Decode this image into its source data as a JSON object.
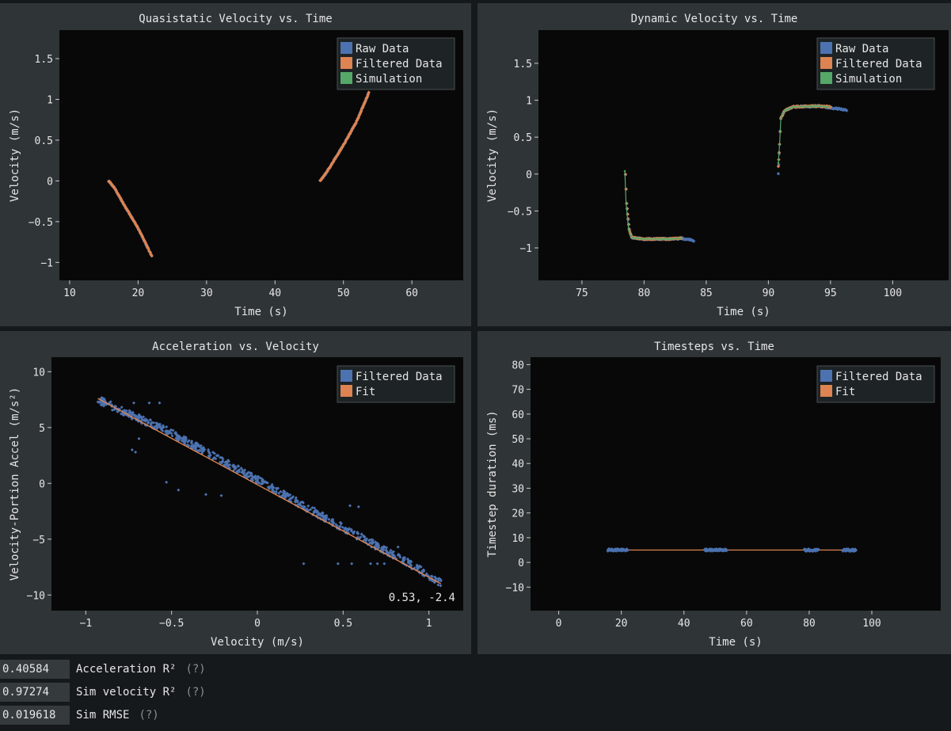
{
  "chart_data": [
    {
      "id": "quasistatic",
      "type": "scatter",
      "title": "Quasistatic Velocity vs. Time",
      "xlabel": "Time (s)",
      "ylabel": "Velocity (m/s)",
      "xlim": [
        8.5,
        67.5
      ],
      "ylim": [
        -1.22,
        1.85
      ],
      "xticks": [
        10,
        20,
        30,
        40,
        50,
        60
      ],
      "yticks": [
        -1,
        -0.5,
        0,
        0.5,
        1,
        1.5
      ],
      "legend": [
        "Raw Data",
        "Filtered Data",
        "Simulation"
      ],
      "legend_position": "top-right",
      "series": [
        {
          "name": "Raw Data",
          "color": "#4c72b0",
          "segments": [
            [
              [
                15.7,
                0.0
              ],
              [
                16.5,
                -0.08
              ],
              [
                18.0,
                -0.3
              ],
              [
                20.0,
                -0.58
              ],
              [
                22.0,
                -0.92
              ]
            ],
            [
              [
                46.6,
                0.0
              ],
              [
                47.5,
                0.1
              ],
              [
                50.0,
                0.44
              ],
              [
                52.0,
                0.74
              ],
              [
                53.7,
                1.08
              ]
            ]
          ]
        },
        {
          "name": "Filtered Data",
          "color": "#dd8452",
          "segments": [
            [
              [
                15.7,
                0.0
              ],
              [
                16.5,
                -0.08
              ],
              [
                18.0,
                -0.3
              ],
              [
                20.0,
                -0.58
              ],
              [
                22.0,
                -0.92
              ]
            ],
            [
              [
                46.6,
                0.0
              ],
              [
                47.5,
                0.1
              ],
              [
                50.0,
                0.44
              ],
              [
                52.0,
                0.74
              ],
              [
                53.7,
                1.08
              ]
            ]
          ]
        },
        {
          "name": "Simulation",
          "color": "#55a868",
          "segments": []
        }
      ]
    },
    {
      "id": "dynamic",
      "type": "scatter",
      "title": "Dynamic Velocity vs. Time",
      "xlabel": "Time (s)",
      "ylabel": "Velocity (m/s)",
      "xlim": [
        71.5,
        104.5
      ],
      "ylim": [
        -1.44,
        1.95
      ],
      "xticks": [
        75,
        80,
        85,
        90,
        95,
        100
      ],
      "yticks": [
        -1,
        -0.5,
        0,
        0.5,
        1,
        1.5
      ],
      "legend": [
        "Raw Data",
        "Filtered Data",
        "Simulation"
      ],
      "legend_position": "top-right",
      "series": [
        {
          "name": "Raw Data",
          "color": "#4c72b0",
          "segments": [
            [
              [
                78.5,
                0.0
              ],
              [
                78.6,
                -0.4
              ],
              [
                78.8,
                -0.75
              ],
              [
                79.0,
                -0.86
              ],
              [
                80.0,
                -0.88
              ],
              [
                82.0,
                -0.88
              ],
              [
                83.0,
                -0.87
              ],
              [
                84.0,
                -0.9
              ]
            ],
            [
              [
                90.8,
                0.0
              ],
              [
                90.9,
                0.4
              ],
              [
                91.0,
                0.75
              ],
              [
                91.3,
                0.86
              ],
              [
                92.0,
                0.91
              ],
              [
                94.0,
                0.92
              ],
              [
                96.3,
                0.87
              ]
            ]
          ]
        },
        {
          "name": "Filtered Data",
          "color": "#dd8452",
          "segments": [
            [
              [
                78.5,
                0.0
              ],
              [
                78.6,
                -0.4
              ],
              [
                78.8,
                -0.75
              ],
              [
                79.0,
                -0.86
              ],
              [
                80.0,
                -0.88
              ],
              [
                82.0,
                -0.88
              ],
              [
                83.0,
                -0.87
              ]
            ],
            [
              [
                90.8,
                0.1
              ],
              [
                90.9,
                0.4
              ],
              [
                91.0,
                0.75
              ],
              [
                91.3,
                0.86
              ],
              [
                92.0,
                0.91
              ],
              [
                94.0,
                0.92
              ],
              [
                95.0,
                0.91
              ]
            ]
          ]
        },
        {
          "name": "Simulation",
          "color": "#55a868",
          "segments": [
            [
              [
                78.45,
                0.04
              ],
              [
                78.55,
                -0.4
              ],
              [
                78.75,
                -0.75
              ],
              [
                79.0,
                -0.86
              ],
              [
                80.0,
                -0.88
              ],
              [
                82.0,
                -0.88
              ],
              [
                83.0,
                -0.87
              ]
            ],
            [
              [
                90.8,
                0.15
              ],
              [
                90.9,
                0.4
              ],
              [
                91.0,
                0.75
              ],
              [
                91.3,
                0.86
              ],
              [
                92.0,
                0.91
              ],
              [
                94.0,
                0.92
              ],
              [
                95.0,
                0.91
              ]
            ]
          ]
        }
      ]
    },
    {
      "id": "accel",
      "type": "scatter",
      "title": "Acceleration vs. Velocity",
      "xlabel": "Velocity (m/s)",
      "ylabel": "Velocity-Portion Accel (m/s²)",
      "xlim": [
        -1.2,
        1.2
      ],
      "ylim": [
        -11.4,
        11.3
      ],
      "xticks": [
        -1,
        -0.5,
        0,
        0.5,
        1
      ],
      "yticks": [
        -10,
        -5,
        0,
        5,
        10
      ],
      "legend": [
        "Filtered Data",
        "Fit"
      ],
      "legend_position": "top-right",
      "cursor_readout": "0.53, -2.4",
      "series": [
        {
          "name": "Filtered Data",
          "color": "#4c72b0",
          "line": [
            [
              -0.93,
              7.5
            ],
            [
              -0.5,
              4.5
            ],
            [
              0.0,
              0.3
            ],
            [
              0.5,
              -4.0
            ],
            [
              0.9,
              -7.3
            ],
            [
              1.07,
              -8.9
            ]
          ],
          "outliers": [
            [
              -0.72,
              7.2
            ],
            [
              -0.63,
              7.2
            ],
            [
              -0.57,
              7.2
            ],
            [
              -0.69,
              4.0
            ],
            [
              -0.73,
              3.0
            ],
            [
              -0.71,
              2.8
            ],
            [
              -0.53,
              0.1
            ],
            [
              -0.46,
              -0.6
            ],
            [
              -0.3,
              -1.0
            ],
            [
              -0.21,
              -1.1
            ],
            [
              0.27,
              -7.2
            ],
            [
              0.47,
              -7.2
            ],
            [
              0.55,
              -7.2
            ],
            [
              0.66,
              -7.2
            ],
            [
              0.7,
              -7.2
            ],
            [
              0.74,
              -7.2
            ],
            [
              0.59,
              -2.1
            ],
            [
              0.54,
              -2.0
            ],
            [
              0.82,
              -5.7
            ]
          ]
        },
        {
          "name": "Fit",
          "color": "#dd8452",
          "line": [
            [
              -0.93,
              7.6
            ],
            [
              1.07,
              -9.0
            ]
          ]
        }
      ]
    },
    {
      "id": "timesteps",
      "type": "scatter",
      "title": "Timesteps vs. Time",
      "xlabel": "Time (s)",
      "ylabel": "Timestep duration (ms)",
      "xlim": [
        -9,
        122
      ],
      "ylim": [
        -19.5,
        83
      ],
      "xticks": [
        0,
        20,
        40,
        60,
        80,
        100
      ],
      "yticks": [
        -10,
        0,
        10,
        20,
        30,
        40,
        50,
        60,
        70,
        80
      ],
      "legend": [
        "Filtered Data",
        "Fit"
      ],
      "legend_position": "top-right",
      "series": [
        {
          "name": "Filtered Data",
          "color": "#4c72b0",
          "ranges": [
            [
              15.7,
              22.0
            ],
            [
              46.6,
              53.7
            ],
            [
              78.5,
              83.0
            ],
            [
              90.8,
              95.0
            ]
          ],
          "y": 5
        },
        {
          "name": "Fit",
          "color": "#dd8452",
          "line": [
            [
              15.7,
              5
            ],
            [
              95.0,
              5
            ]
          ]
        }
      ]
    }
  ],
  "metrics": [
    {
      "value": "0.40584",
      "label": "Acceleration R²",
      "help": "(?)"
    },
    {
      "value": "0.97274",
      "label": "Sim velocity R²",
      "help": "(?)"
    },
    {
      "value": "0.019618",
      "label": "Sim RMSE",
      "help": "(?)"
    }
  ]
}
